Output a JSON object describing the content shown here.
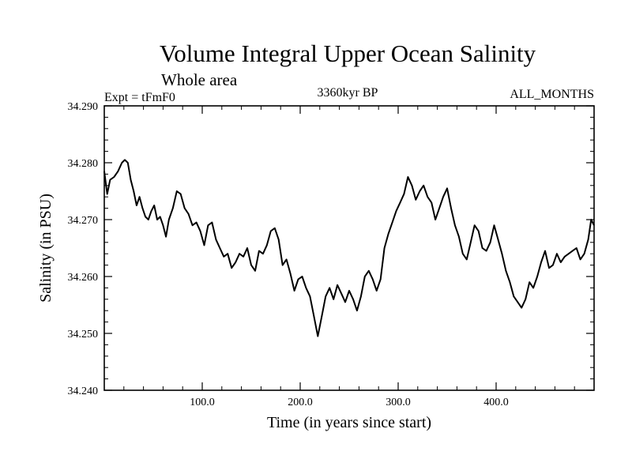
{
  "chart_data": {
    "type": "line",
    "title": "Volume Integral Upper Ocean Salinity",
    "subtitle": "Whole area",
    "annotation_left": "Expt = tFmF0",
    "annotation_center": "3360kyr BP",
    "annotation_right": "ALL_MONTHS",
    "xlabel": "Time (in years since start)",
    "ylabel": "Salinity (in PSU)",
    "xlim": [
      0,
      500
    ],
    "ylim": [
      34.24,
      34.29
    ],
    "x_ticks": [
      100,
      200,
      300,
      400
    ],
    "x_tick_labels": [
      "100.0",
      "200.0",
      "300.0",
      "400.0"
    ],
    "y_ticks": [
      34.24,
      34.25,
      34.26,
      34.27,
      34.28,
      34.29
    ],
    "y_tick_labels": [
      "34.240",
      "34.250",
      "34.260",
      "34.270",
      "34.280",
      "34.290"
    ],
    "series": [
      {
        "name": "salinity",
        "color": "#000000",
        "x": [
          0,
          3,
          6,
          10,
          14,
          18,
          21,
          24,
          27,
          30,
          33,
          36,
          39,
          42,
          45,
          48,
          51,
          54,
          57,
          60,
          63,
          66,
          70,
          74,
          78,
          82,
          86,
          90,
          94,
          98,
          102,
          106,
          110,
          114,
          118,
          122,
          126,
          130,
          134,
          138,
          142,
          146,
          150,
          154,
          158,
          162,
          166,
          170,
          174,
          178,
          182,
          186,
          190,
          194,
          198,
          202,
          206,
          210,
          214,
          218,
          222,
          226,
          230,
          234,
          238,
          242,
          246,
          250,
          254,
          258,
          262,
          266,
          270,
          274,
          278,
          282,
          286,
          290,
          294,
          298,
          302,
          306,
          310,
          314,
          318,
          322,
          326,
          330,
          334,
          338,
          342,
          346,
          350,
          354,
          358,
          362,
          366,
          370,
          374,
          378,
          382,
          386,
          390,
          394,
          398,
          402,
          406,
          410,
          414,
          418,
          422,
          426,
          430,
          434,
          438,
          442,
          446,
          450,
          454,
          458,
          462,
          466,
          470,
          474,
          478,
          482,
          486,
          490,
          494,
          497,
          500
        ],
        "y": [
          34.2785,
          34.2745,
          34.277,
          34.2775,
          34.2785,
          34.28,
          34.2805,
          34.28,
          34.277,
          34.275,
          34.2725,
          34.274,
          34.272,
          34.2705,
          34.27,
          34.2715,
          34.2725,
          34.27,
          34.2705,
          34.269,
          34.267,
          34.27,
          34.272,
          34.275,
          34.2745,
          34.272,
          34.271,
          34.269,
          34.2695,
          34.268,
          34.2655,
          34.269,
          34.2695,
          34.2665,
          34.265,
          34.2635,
          34.264,
          34.2615,
          34.2625,
          34.264,
          34.2635,
          34.265,
          34.262,
          34.261,
          34.2645,
          34.264,
          34.2655,
          34.268,
          34.2685,
          34.2665,
          34.262,
          34.263,
          34.2605,
          34.2575,
          34.2595,
          34.26,
          34.258,
          34.2565,
          34.253,
          34.2495,
          34.253,
          34.2565,
          34.258,
          34.256,
          34.2585,
          34.257,
          34.2555,
          34.2575,
          34.256,
          34.254,
          34.2565,
          34.26,
          34.261,
          34.2595,
          34.2575,
          34.2595,
          34.265,
          34.2675,
          34.2695,
          34.2715,
          34.273,
          34.2745,
          34.2775,
          34.276,
          34.2735,
          34.275,
          34.276,
          34.274,
          34.273,
          34.27,
          34.272,
          34.274,
          34.2755,
          34.272,
          34.269,
          34.267,
          34.264,
          34.263,
          34.266,
          34.269,
          34.268,
          34.265,
          34.2645,
          34.266,
          34.269,
          34.2665,
          34.264,
          34.261,
          34.259,
          34.2565,
          34.2555,
          34.2545,
          34.256,
          34.259,
          34.258,
          34.26,
          34.2625,
          34.2645,
          34.2615,
          34.262,
          34.264,
          34.2625,
          34.2635,
          34.264,
          34.2645,
          34.265,
          34.263,
          34.264,
          34.2665,
          34.27,
          34.269
        ]
      }
    ]
  }
}
